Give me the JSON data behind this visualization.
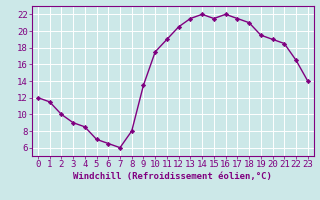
{
  "x": [
    0,
    1,
    2,
    3,
    4,
    5,
    6,
    7,
    8,
    9,
    10,
    11,
    12,
    13,
    14,
    15,
    16,
    17,
    18,
    19,
    20,
    21,
    22,
    23
  ],
  "y": [
    12,
    11.5,
    10,
    9,
    8.5,
    7,
    6.5,
    6,
    8,
    13.5,
    17.5,
    19,
    20.5,
    21.5,
    22,
    21.5,
    22,
    21.5,
    21,
    19.5,
    19,
    18.5,
    16.5,
    14
  ],
  "line_color": "#800080",
  "marker": "D",
  "marker_size": 2.2,
  "bg_color": "#cce8e8",
  "grid_color": "#b0d8d8",
  "xlabel": "Windchill (Refroidissement éolien,°C)",
  "xlim": [
    -0.5,
    23.5
  ],
  "ylim": [
    5.0,
    23.0
  ],
  "yticks": [
    6,
    8,
    10,
    12,
    14,
    16,
    18,
    20,
    22
  ],
  "xticks": [
    0,
    1,
    2,
    3,
    4,
    5,
    6,
    7,
    8,
    9,
    10,
    11,
    12,
    13,
    14,
    15,
    16,
    17,
    18,
    19,
    20,
    21,
    22,
    23
  ],
  "xlabel_fontsize": 6.5,
  "tick_fontsize": 6.5,
  "label_color": "#800080",
  "line_width": 1.0,
  "spine_color": "#800080",
  "grid_line_color": "#ffffff"
}
